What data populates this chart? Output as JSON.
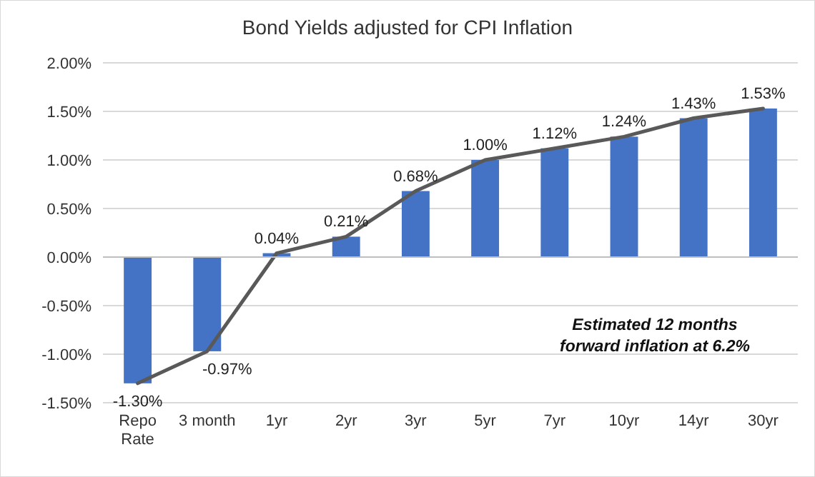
{
  "chart_data": {
    "type": "bar",
    "title": "Bond Yields adjusted for CPI Inflation",
    "categories": [
      "Repo Rate",
      "3 month",
      "1yr",
      "2yr",
      "3yr",
      "5yr",
      "7yr",
      "10yr",
      "14yr",
      "30yr"
    ],
    "series": [
      {
        "color": "#4472c4",
        "values": [
          -1.3,
          -0.97,
          0.04,
          0.21,
          0.68,
          1.0,
          1.12,
          1.24,
          1.43,
          1.53
        ]
      },
      {
        "type": "line",
        "color": "#595959",
        "values": [
          -1.3,
          -0.97,
          0.04,
          0.21,
          0.68,
          1.0,
          1.12,
          1.24,
          1.43,
          1.53
        ],
        "value_labels": [
          "-1.30%",
          "-0.97%",
          "0.04%",
          "0.21%",
          "0.68%",
          "1.00%",
          "1.12%",
          "1.24%",
          "1.43%",
          "1.53%"
        ]
      }
    ],
    "ylim": [
      -1.5,
      2
    ],
    "yticks": [
      {
        "value": -1.5,
        "label": "-1.50%"
      },
      {
        "value": -1,
        "label": "-1.00%"
      },
      {
        "value": -0.5,
        "label": "-0.50%"
      },
      {
        "value": 0,
        "label": "0.00%"
      },
      {
        "value": 0.5,
        "label": "0.50%"
      },
      {
        "value": 1,
        "label": "1.00%"
      },
      {
        "value": 1.5,
        "label": "1.50%"
      },
      {
        "value": 2,
        "label": "2.00%"
      }
    ],
    "grid": "y",
    "marker": "none",
    "line_style": "solid",
    "annotations": [
      "Estimated 12 months forward inflation at 6.2%"
    ]
  }
}
